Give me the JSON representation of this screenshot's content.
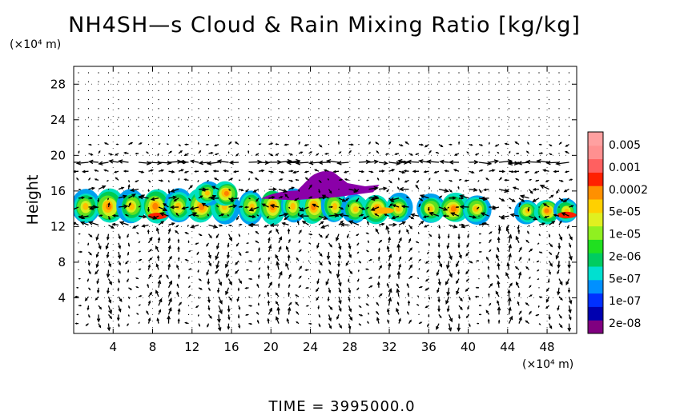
{
  "chart_data": {
    "type": "heatmap",
    "title": "NH4SH—s Cloud & Rain Mixing Ratio [kg/kg]",
    "x_unit_label": "(×10⁴ m)",
    "y_unit_label": "(×10⁴ m)",
    "ylabel": "Height",
    "xlabel": "",
    "xlim": [
      0,
      51
    ],
    "ylim": [
      0,
      30
    ],
    "x_ticks": [
      "4",
      "8",
      "12",
      "16",
      "20",
      "24",
      "28",
      "32",
      "36",
      "40",
      "44",
      "48"
    ],
    "y_ticks": [
      "4",
      "8",
      "12",
      "16",
      "20",
      "24",
      "28"
    ],
    "x_tick_values": [
      4,
      8,
      12,
      16,
      20,
      24,
      28,
      32,
      36,
      40,
      44,
      48
    ],
    "y_tick_values": [
      4,
      8,
      12,
      16,
      20,
      24,
      28
    ],
    "time_label": "TIME  =  3995000.0",
    "colorbar": {
      "labels": [
        "0.005",
        "0.001",
        "0.0002",
        "5e-05",
        "1e-05",
        "2e-06",
        "5e-07",
        "1e-07",
        "2e-08"
      ],
      "colors": [
        "#800080",
        "#0000b0",
        "#0030ff",
        "#0090ff",
        "#00e0d0",
        "#00cc60",
        "#20e020",
        "#90f020",
        "#e0f020",
        "#ffd000",
        "#ff9000",
        "#ff2000",
        "#ff6060",
        "#ff9090",
        "#ffa0a0"
      ]
    },
    "cloud_bands": [
      {
        "x_start": 0.0,
        "x_end": 16.5,
        "y_bottom": 12.5,
        "y_top": 16.0
      },
      {
        "x_start": 12.5,
        "x_end": 16.5,
        "y_bottom": 14.5,
        "y_top": 17.0
      },
      {
        "x_start": 17.0,
        "x_end": 27.5,
        "y_bottom": 12.5,
        "y_top": 16.0
      },
      {
        "x_start": 27.5,
        "x_end": 34.0,
        "y_bottom": 12.5,
        "y_top": 15.5
      },
      {
        "x_start": 35.0,
        "x_end": 42.0,
        "y_bottom": 12.5,
        "y_top": 15.5
      },
      {
        "x_start": 45.0,
        "x_end": 51.0,
        "y_bottom": 12.5,
        "y_top": 15.0
      }
    ],
    "upper_cloud": {
      "x_start": 19.0,
      "x_end": 31.0,
      "y_bottom": 15.5,
      "y_top": 18.5
    },
    "peak_locations": [
      {
        "x": 8.5,
        "y": 13.2,
        "level": "0.001"
      },
      {
        "x": 31.5,
        "y": 13.8,
        "level": "0.0002"
      },
      {
        "x": 50.0,
        "y": 13.3,
        "level": "0.001"
      }
    ],
    "vector_field": "wind vectors plotted at regular grid points; strongest arrows near z = 14 and z = 19 (×10⁴ m)"
  }
}
